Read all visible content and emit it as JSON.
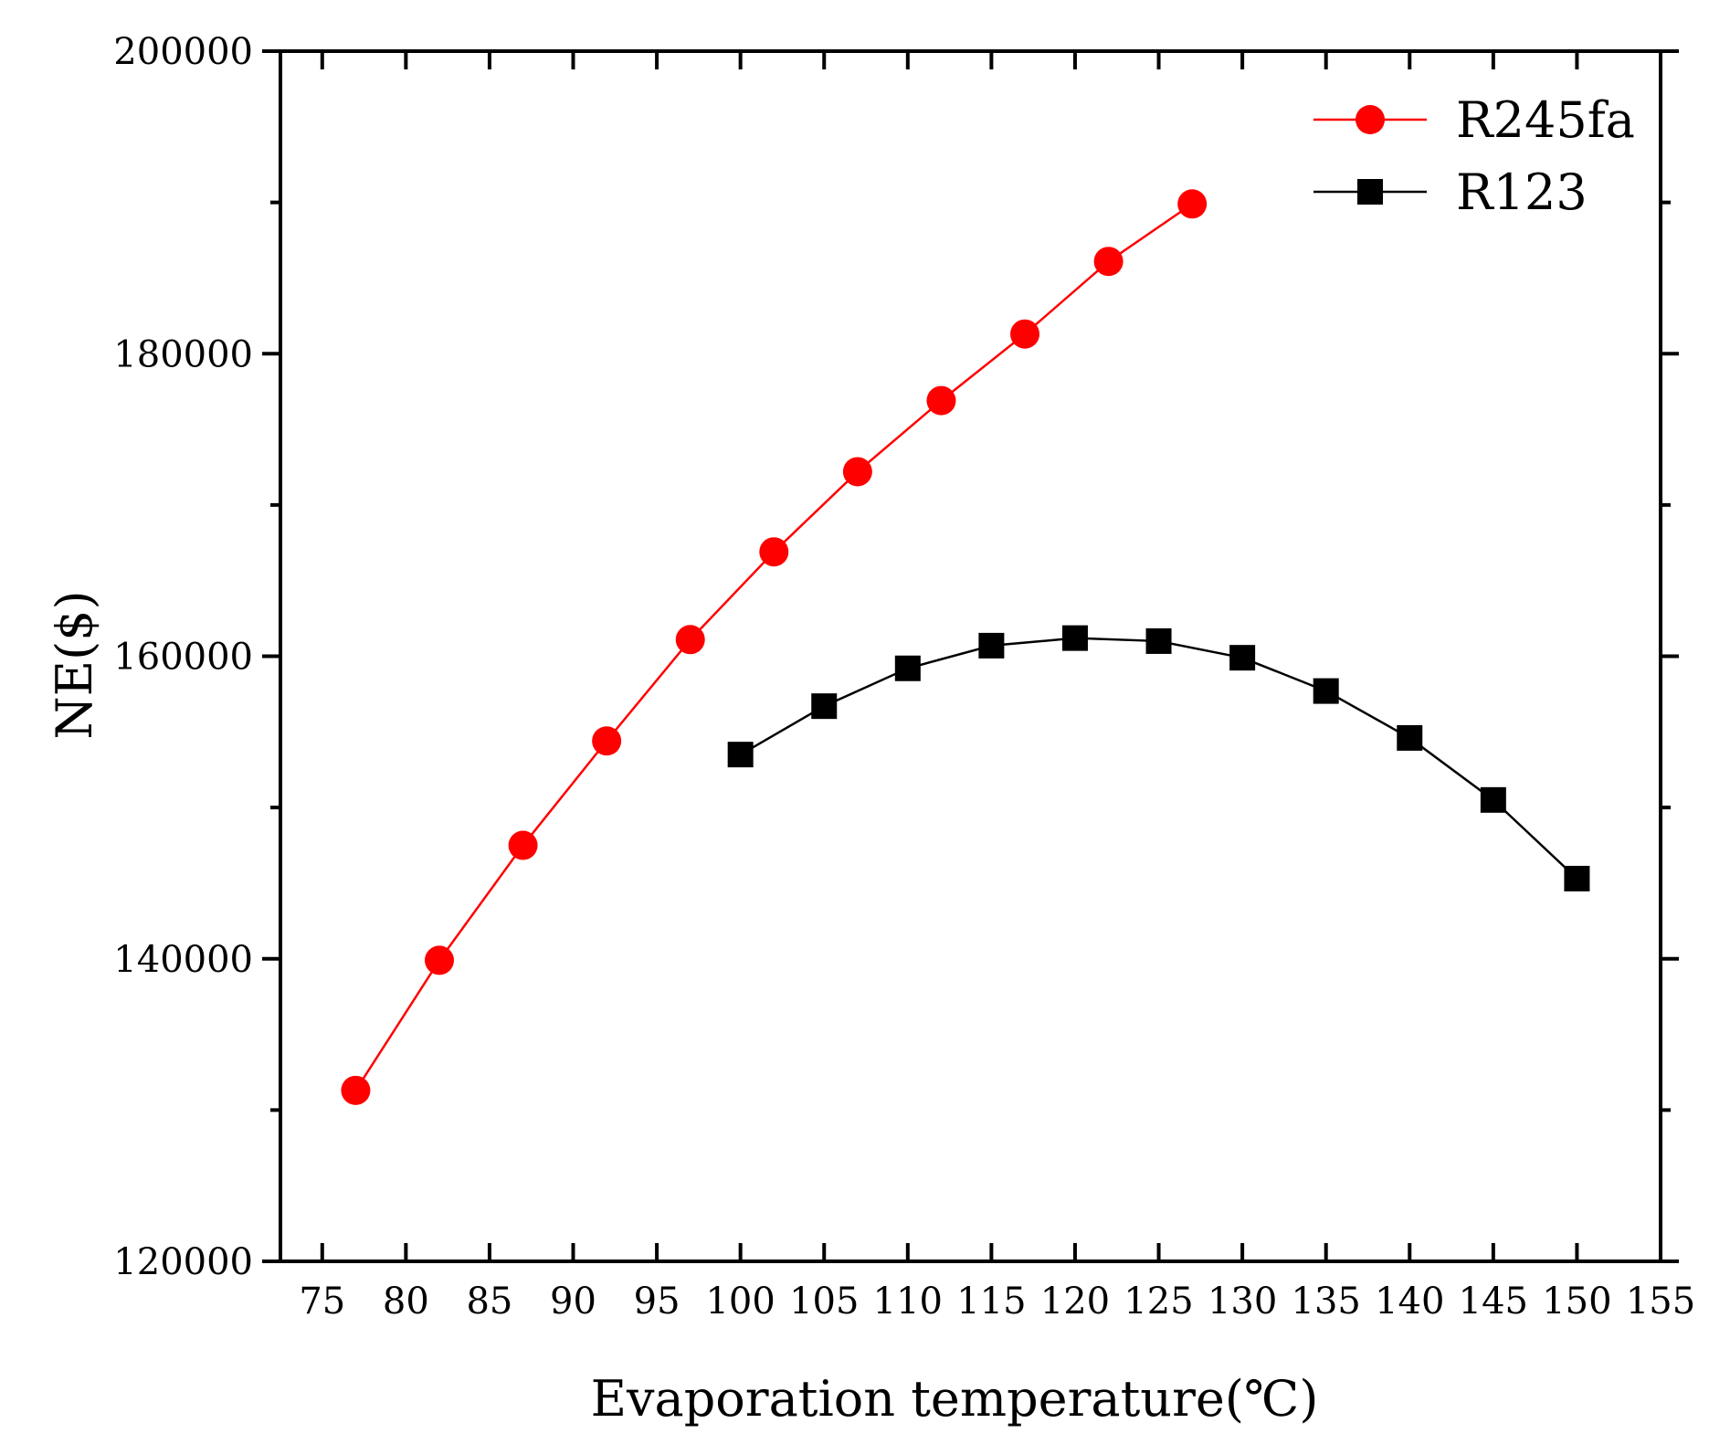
{
  "chart_data": {
    "type": "line",
    "xlabel": "Evaporation temperature(℃)",
    "ylabel": "NE($)",
    "xlim": [
      72.5,
      155
    ],
    "ylim": [
      120000,
      200000
    ],
    "xticks": [
      75,
      80,
      85,
      90,
      95,
      100,
      105,
      110,
      115,
      120,
      125,
      130,
      135,
      140,
      145,
      150,
      155
    ],
    "yticks": [
      120000,
      140000,
      160000,
      180000,
      200000
    ],
    "y_minor_ticks": [
      130000,
      150000,
      170000,
      190000
    ],
    "grid": false,
    "legend_position": "top-right",
    "series": [
      {
        "name": "R245fa",
        "color": "#ff0000",
        "marker": "circle",
        "x": [
          77,
          82,
          87,
          92,
          97,
          102,
          107,
          112,
          117,
          122,
          127
        ],
        "y": [
          131300,
          139900,
          147500,
          154400,
          161100,
          166900,
          172200,
          176900,
          181300,
          186100,
          189900
        ]
      },
      {
        "name": "R123",
        "color": "#000000",
        "marker": "square",
        "x": [
          100,
          105,
          110,
          115,
          120,
          125,
          130,
          135,
          140,
          145,
          150
        ],
        "y": [
          153500,
          156700,
          159200,
          160700,
          161200,
          161000,
          159900,
          157700,
          154600,
          150500,
          145300
        ]
      }
    ]
  }
}
